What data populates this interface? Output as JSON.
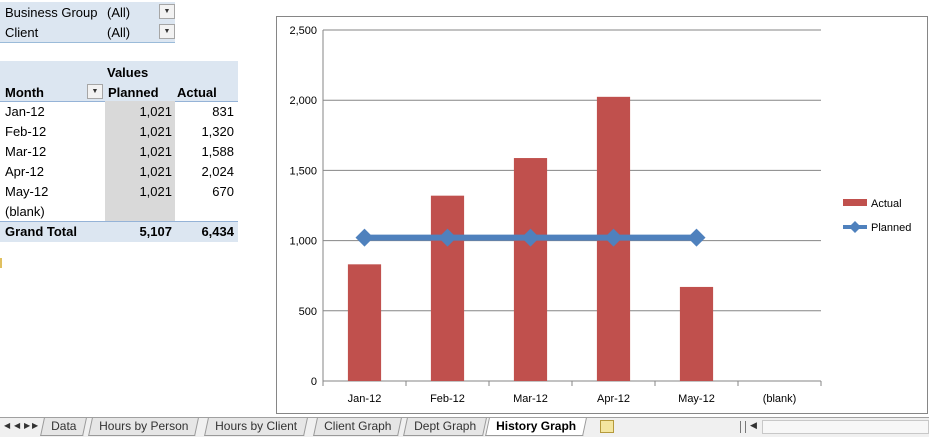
{
  "filters": [
    {
      "label": "Business Group",
      "value": "(All)"
    },
    {
      "label": "Client",
      "value": "(All)"
    }
  ],
  "pivot": {
    "values_label": "Values",
    "headers": {
      "month": "Month",
      "planned": "Planned",
      "actual": "Actual"
    },
    "rows": [
      {
        "month": "Jan-12",
        "planned": "1,021",
        "actual": "831"
      },
      {
        "month": "Feb-12",
        "planned": "1,021",
        "actual": "1,320"
      },
      {
        "month": "Mar-12",
        "planned": "1,021",
        "actual": "1,588"
      },
      {
        "month": "Apr-12",
        "planned": "1,021",
        "actual": "2,024"
      },
      {
        "month": "May-12",
        "planned": "1,021",
        "actual": "670"
      },
      {
        "month": "(blank)",
        "planned": "",
        "actual": ""
      }
    ],
    "grand_total": {
      "label": "Grand Total",
      "planned": "5,107",
      "actual": "6,434"
    }
  },
  "chart_data": {
    "type": "bar",
    "categories": [
      "Jan-12",
      "Feb-12",
      "Mar-12",
      "Apr-12",
      "May-12",
      "(blank)"
    ],
    "series": [
      {
        "name": "Actual",
        "type": "bar",
        "color": "#c0504d",
        "values": [
          831,
          1320,
          1588,
          2024,
          670,
          null
        ]
      },
      {
        "name": "Planned",
        "type": "line",
        "color": "#4f81bd",
        "values": [
          1021,
          1021,
          1021,
          1021,
          1021,
          null
        ]
      }
    ],
    "ylim": [
      0,
      2500
    ],
    "yticks": [
      0,
      500,
      1000,
      1500,
      2000,
      2500
    ],
    "ytick_labels": [
      "0",
      "500",
      "1,000",
      "1,500",
      "2,000",
      "2,500"
    ],
    "grid": true,
    "legend_position": "right",
    "title": "",
    "xlabel": "",
    "ylabel": ""
  },
  "sheet_tabs": [
    "Data",
    "Hours by Person",
    "Hours by Client",
    "Client Graph",
    "Dept Graph",
    "History Graph"
  ],
  "active_tab": "History Graph"
}
